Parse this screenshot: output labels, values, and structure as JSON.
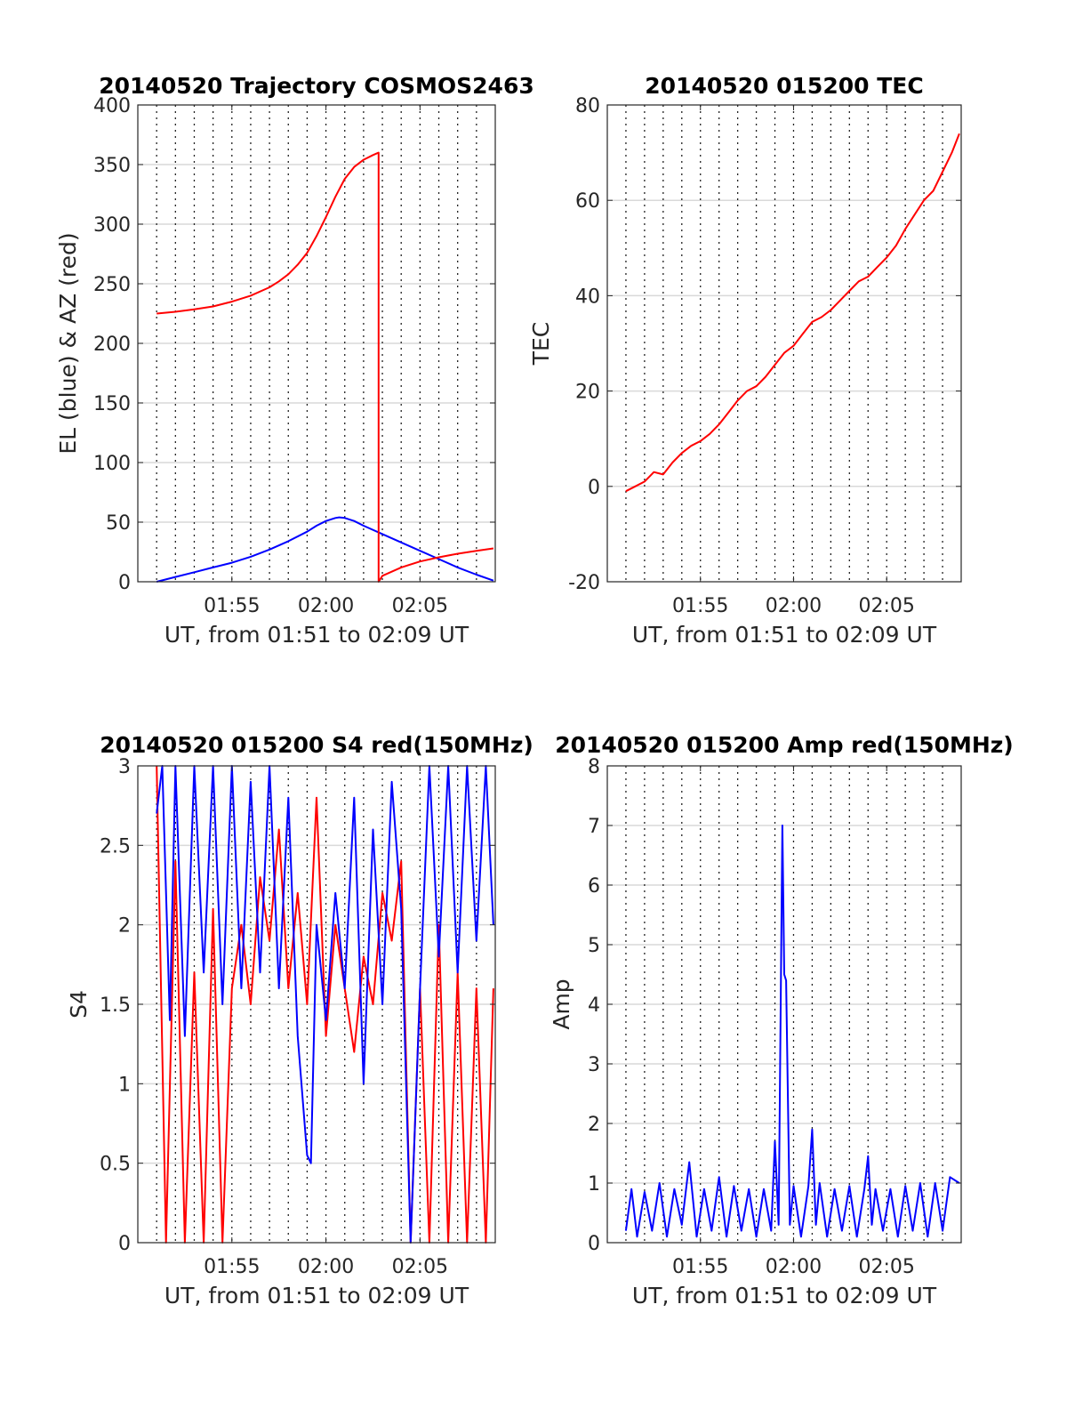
{
  "colors": {
    "red": "#ff0000",
    "blue": "#0000ff",
    "axis": "#262626"
  },
  "chart_data": [
    {
      "id": "trajectory",
      "type": "line",
      "title": "20140520 Trajectory COSMOS2463",
      "xlabel": "UT, from 01:51 to 02:09 UT",
      "ylabel": "EL (blue) & AZ (red)",
      "x_range_min": [
        110.0,
        129.0
      ],
      "ylim": [
        0,
        400
      ],
      "yticks": [
        0,
        50,
        100,
        150,
        200,
        250,
        300,
        350,
        400
      ],
      "xticks": [
        {
          "label": "01:55",
          "min": 115
        },
        {
          "label": "02:00",
          "min": 120
        },
        {
          "label": "02:05",
          "min": 125
        }
      ],
      "x_grid_min": [
        111,
        112,
        113,
        114,
        115,
        116,
        117,
        118,
        119,
        120,
        121,
        122,
        123,
        124,
        125,
        126,
        127,
        128
      ],
      "grid": "on",
      "series": [
        {
          "label_ref": "EL",
          "color": "blue",
          "x_min": [
            111.0,
            112.0,
            113.0,
            114.0,
            115.0,
            116.0,
            117.0,
            118.0,
            119.0,
            119.5,
            120.0,
            120.5,
            120.7,
            121.0,
            121.5,
            122.0,
            123.0,
            124.0,
            125.0,
            126.0,
            127.0,
            128.0,
            128.9
          ],
          "y": [
            0,
            4,
            8,
            12,
            16,
            21,
            27,
            34,
            42,
            47,
            51,
            53.5,
            54,
            53.5,
            51,
            47,
            40,
            33,
            26,
            19,
            12,
            6,
            1
          ]
        },
        {
          "label_ref": "AZ",
          "color": "red",
          "x_min": [
            111.0,
            112.0,
            113.0,
            114.0,
            115.0,
            116.0,
            117.0,
            117.5,
            118.0,
            118.5,
            119.0,
            119.5,
            120.0,
            120.5,
            121.0,
            121.5,
            122.0,
            122.5,
            122.8,
            122.8,
            123.0,
            124.0,
            125.0,
            126.0,
            127.0,
            128.0,
            128.9
          ],
          "y": [
            225,
            226.5,
            228.5,
            231,
            235,
            240,
            247,
            252,
            258,
            266,
            276,
            290,
            306,
            323,
            338,
            348,
            354,
            358,
            360,
            0,
            5,
            12,
            17,
            20.5,
            23.5,
            26,
            28
          ]
        }
      ]
    },
    {
      "id": "tec",
      "type": "line",
      "title": "20140520 015200 TEC",
      "xlabel": "UT, from 01:51 to 02:09 UT",
      "ylabel": "TEC",
      "x_range_min": [
        110.0,
        129.0
      ],
      "ylim": [
        -20,
        80
      ],
      "yticks": [
        -20,
        0,
        20,
        40,
        60,
        80
      ],
      "xticks": [
        {
          "label": "01:55",
          "min": 115
        },
        {
          "label": "02:00",
          "min": 120
        },
        {
          "label": "02:05",
          "min": 125
        }
      ],
      "x_grid_min": [
        111,
        112,
        113,
        114,
        115,
        116,
        117,
        118,
        119,
        120,
        121,
        122,
        123,
        124,
        125,
        126,
        127,
        128
      ],
      "grid": "on",
      "series": [
        {
          "label_ref": "TEC",
          "color": "red",
          "x_min": [
            111.0,
            111.5,
            112.0,
            112.5,
            113.0,
            113.5,
            114.0,
            114.5,
            115.0,
            115.5,
            116.0,
            116.5,
            117.0,
            117.5,
            118.0,
            118.5,
            119.0,
            119.5,
            120.0,
            120.5,
            121.0,
            121.5,
            122.0,
            122.5,
            123.0,
            123.5,
            124.0,
            124.5,
            125.0,
            125.5,
            126.0,
            126.5,
            127.0,
            127.5,
            128.0,
            128.5,
            128.9
          ],
          "y": [
            -1,
            0,
            1,
            3,
            2.5,
            5,
            7,
            8.5,
            9.5,
            11,
            13,
            15.5,
            18,
            20,
            21,
            23,
            25.5,
            28,
            29.5,
            32,
            34.5,
            35.5,
            37,
            39,
            41,
            43,
            44,
            46,
            48,
            50.5,
            54,
            57,
            60,
            62,
            66,
            70,
            74
          ]
        }
      ]
    },
    {
      "id": "s4",
      "type": "line",
      "title": "20140520 015200 S4 red(150MHz)",
      "xlabel": "UT, from 01:51 to 02:09 UT",
      "ylabel": "S4",
      "x_range_min": [
        110.0,
        129.0
      ],
      "ylim": [
        0,
        3
      ],
      "yticks": [
        0,
        0.5,
        1,
        1.5,
        2,
        2.5,
        3
      ],
      "xticks": [
        {
          "label": "01:55",
          "min": 115
        },
        {
          "label": "02:00",
          "min": 120
        },
        {
          "label": "02:05",
          "min": 125
        }
      ],
      "x_grid_min": [
        111,
        112,
        113,
        114,
        115,
        116,
        117,
        118,
        119,
        120,
        121,
        122,
        123,
        124,
        125,
        126,
        127,
        128
      ],
      "grid": "on",
      "series": [
        {
          "label_ref": "red",
          "color": "red",
          "x_min": [
            111.0,
            111.5,
            112.0,
            112.5,
            113.0,
            113.5,
            114.0,
            114.5,
            115.0,
            115.5,
            116.0,
            116.5,
            117.0,
            117.5,
            118.0,
            118.5,
            119.0,
            119.5,
            120.0,
            120.5,
            121.0,
            121.5,
            122.0,
            122.5,
            123.0,
            123.5,
            124.0,
            124.5,
            125.0,
            125.5,
            126.0,
            126.5,
            127.0,
            127.5,
            128.0,
            128.5,
            128.9
          ],
          "y": [
            3.0,
            0.0,
            2.4,
            0.0,
            1.7,
            0.0,
            2.1,
            0.0,
            1.6,
            2.0,
            1.5,
            2.3,
            1.9,
            2.6,
            1.6,
            2.2,
            1.5,
            2.8,
            1.3,
            2.0,
            1.6,
            1.2,
            1.8,
            1.5,
            2.2,
            1.9,
            2.4,
            0.0,
            1.6,
            0.0,
            2.0,
            0.0,
            1.7,
            0.0,
            1.6,
            0.0,
            1.6
          ]
        },
        {
          "label_ref": "blue",
          "color": "blue",
          "x_min": [
            111.0,
            111.3,
            111.7,
            112.0,
            112.5,
            113.0,
            113.5,
            114.0,
            114.5,
            115.0,
            115.5,
            116.0,
            116.5,
            117.0,
            117.5,
            118.0,
            118.5,
            119.0,
            119.2,
            119.5,
            120.0,
            120.5,
            121.0,
            121.5,
            122.0,
            122.5,
            123.0,
            123.5,
            124.0,
            124.5,
            125.0,
            125.5,
            126.0,
            126.5,
            127.0,
            127.5,
            128.0,
            128.5,
            128.9
          ],
          "y": [
            2.7,
            3.0,
            1.4,
            3.0,
            1.3,
            3.0,
            1.7,
            3.0,
            1.5,
            3.0,
            1.6,
            2.9,
            1.7,
            3.0,
            1.6,
            2.8,
            1.3,
            0.55,
            0.5,
            2.0,
            1.4,
            2.2,
            1.6,
            2.8,
            1.0,
            2.6,
            1.5,
            2.9,
            2.1,
            0.0,
            1.6,
            3.0,
            1.8,
            3.0,
            1.7,
            3.0,
            1.9,
            3.0,
            2.0
          ]
        }
      ]
    },
    {
      "id": "amp",
      "type": "line",
      "title": "20140520 015200 Amp red(150MHz)",
      "xlabel": "UT, from 01:51 to 02:09 UT",
      "ylabel": "Amp",
      "x_range_min": [
        110.0,
        129.0
      ],
      "ylim": [
        0,
        8
      ],
      "yticks": [
        0,
        1,
        2,
        3,
        4,
        5,
        6,
        7,
        8
      ],
      "xticks": [
        {
          "label": "01:55",
          "min": 115
        },
        {
          "label": "02:00",
          "min": 120
        },
        {
          "label": "02:05",
          "min": 125
        }
      ],
      "x_grid_min": [
        111,
        112,
        113,
        114,
        115,
        116,
        117,
        118,
        119,
        120,
        121,
        122,
        123,
        124,
        125,
        126,
        127,
        128
      ],
      "grid": "on",
      "series": [
        {
          "label_ref": "Amp",
          "color": "blue",
          "x_min": [
            111.0,
            111.3,
            111.6,
            112.0,
            112.4,
            112.8,
            113.2,
            113.6,
            114.0,
            114.4,
            114.8,
            115.2,
            115.6,
            116.0,
            116.4,
            116.8,
            117.2,
            117.6,
            118.0,
            118.4,
            118.8,
            119.0,
            119.2,
            119.4,
            119.5,
            119.6,
            119.8,
            120.0,
            120.4,
            120.8,
            121.0,
            121.2,
            121.4,
            121.8,
            122.2,
            122.6,
            123.0,
            123.4,
            123.8,
            124.0,
            124.2,
            124.4,
            124.8,
            125.2,
            125.6,
            126.0,
            126.4,
            126.8,
            127.2,
            127.6,
            128.0,
            128.4,
            128.9
          ],
          "y": [
            0.2,
            0.9,
            0.1,
            0.85,
            0.2,
            1.0,
            0.1,
            0.9,
            0.3,
            1.35,
            0.1,
            0.9,
            0.2,
            1.1,
            0.1,
            0.95,
            0.2,
            0.9,
            0.1,
            0.9,
            0.2,
            1.7,
            0.3,
            7.0,
            4.5,
            4.4,
            0.3,
            0.95,
            0.1,
            0.95,
            1.9,
            0.3,
            1.0,
            0.1,
            0.9,
            0.2,
            0.95,
            0.1,
            0.9,
            1.45,
            0.3,
            0.9,
            0.2,
            0.9,
            0.1,
            0.95,
            0.2,
            1.0,
            0.1,
            1.0,
            0.2,
            1.1,
            1.0
          ]
        }
      ]
    }
  ]
}
